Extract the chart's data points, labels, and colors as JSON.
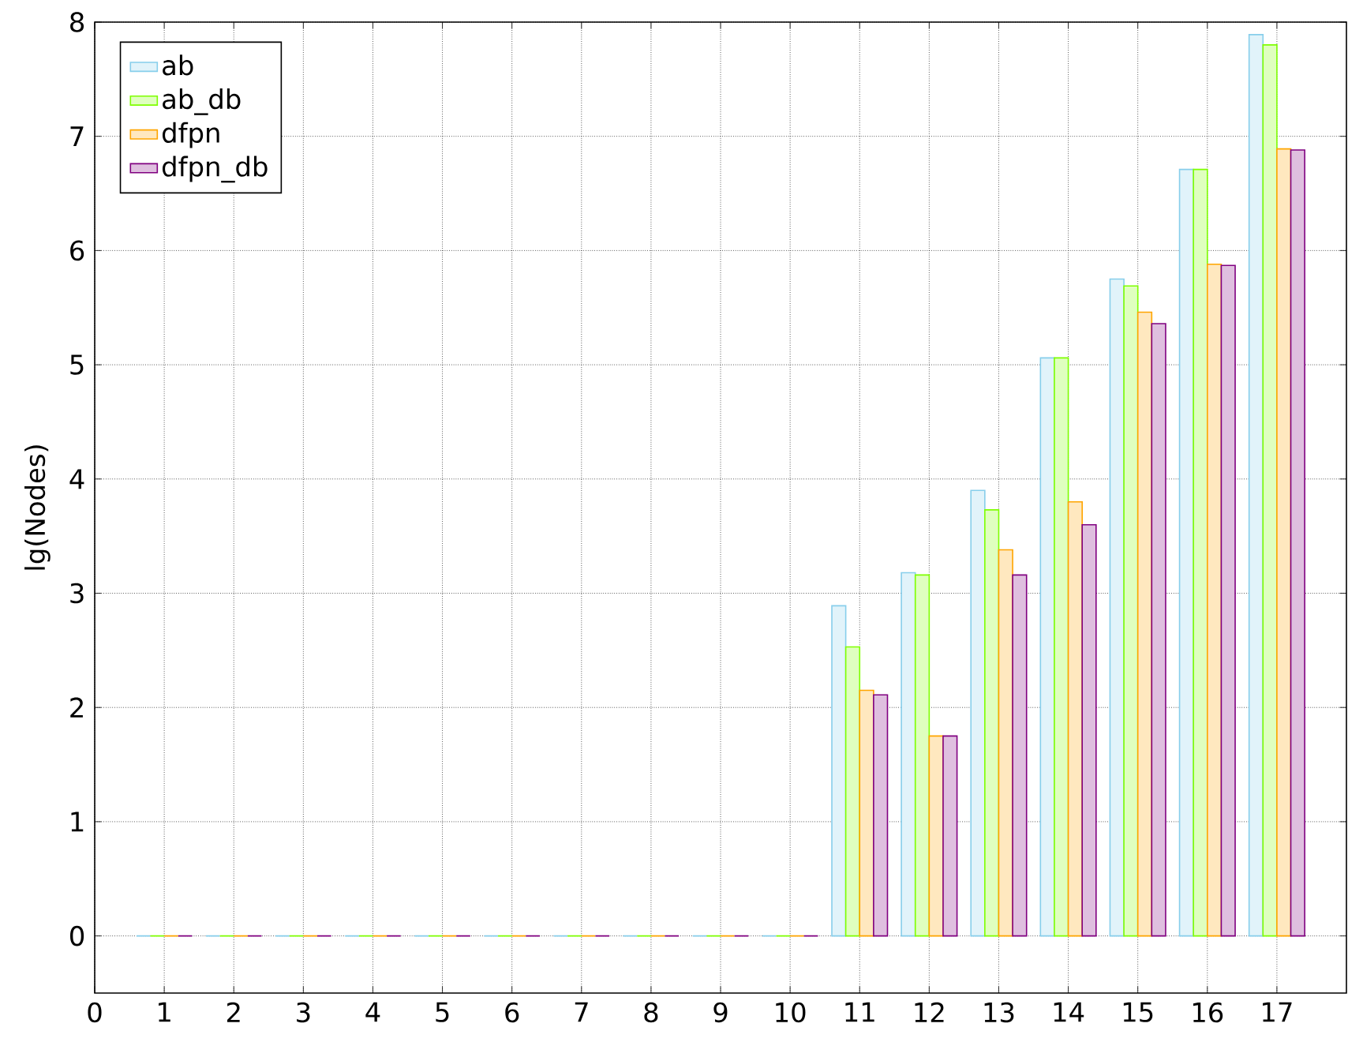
{
  "chart_data": {
    "type": "bar",
    "ylabel": "lg(Nodes)",
    "x": [
      1,
      2,
      3,
      4,
      5,
      6,
      7,
      8,
      9,
      10,
      11,
      12,
      13,
      14,
      15,
      16,
      17
    ],
    "series": [
      {
        "name": "ab",
        "color": "#87ceeb",
        "values": [
          0,
          0,
          0,
          0,
          0,
          0,
          0,
          0,
          0,
          0,
          2.89,
          3.18,
          3.9,
          5.06,
          5.75,
          6.71,
          7.89
        ]
      },
      {
        "name": "ab_db",
        "color": "#7fff00",
        "values": [
          0,
          0,
          0,
          0,
          0,
          0,
          0,
          0,
          0,
          0,
          2.53,
          3.16,
          3.73,
          5.06,
          5.69,
          6.71,
          7.8
        ]
      },
      {
        "name": "dfpn",
        "color": "#ffa500",
        "values": [
          0,
          0,
          0,
          0,
          0,
          0,
          0,
          0,
          0,
          0,
          2.15,
          1.75,
          3.38,
          3.8,
          5.46,
          5.88,
          6.89
        ]
      },
      {
        "name": "dfpn_db",
        "color": "#800080",
        "values": [
          0,
          0,
          0,
          0,
          0,
          0,
          0,
          0,
          0,
          0,
          2.11,
          1.75,
          3.16,
          3.6,
          5.36,
          5.87,
          6.88
        ]
      }
    ],
    "xlim": [
      0,
      18
    ],
    "ylim": [
      -0.5,
      8
    ],
    "xticks": [
      0,
      1,
      2,
      3,
      4,
      5,
      6,
      7,
      8,
      9,
      10,
      11,
      12,
      13,
      14,
      15,
      16,
      17
    ],
    "yticks": [
      0,
      1,
      2,
      3,
      4,
      5,
      6,
      7,
      8
    ],
    "grid": true,
    "legend": "top left"
  }
}
